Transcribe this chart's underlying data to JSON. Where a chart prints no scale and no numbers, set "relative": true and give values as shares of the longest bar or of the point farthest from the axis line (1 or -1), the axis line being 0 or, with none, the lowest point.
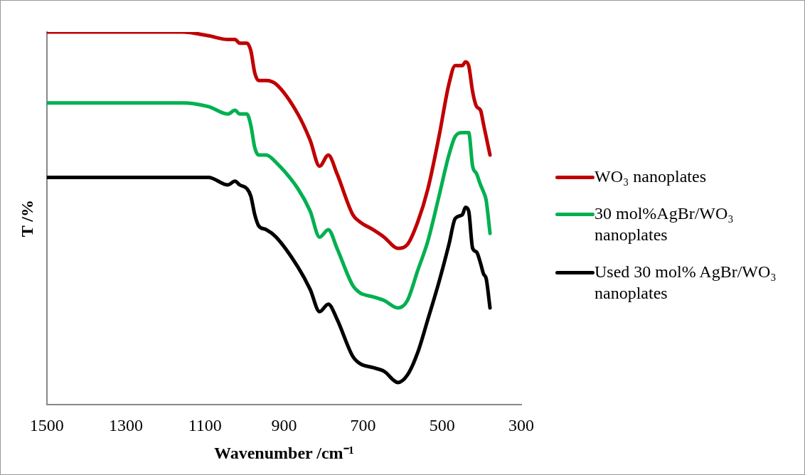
{
  "chart_data": {
    "type": "line",
    "relative": true,
    "xlabel": "Wavenumber /cm⁻¹",
    "ylabel": "T /%",
    "x": [
      1500,
      1355,
      1157,
      1091,
      1042,
      1024,
      1012,
      994,
      984,
      974,
      964,
      945,
      920,
      865,
      834,
      810,
      788,
      766,
      726,
      707,
      675,
      647,
      612,
      588,
      562,
      536,
      508,
      483,
      467,
      449,
      441,
      433,
      423,
      413,
      403,
      395,
      389,
      379
    ],
    "xlim": [
      1500,
      300
    ],
    "xticks": [
      1500,
      1300,
      1100,
      900,
      700,
      500,
      300
    ],
    "grid": false,
    "legend": "right",
    "marker": "none",
    "line_style": "solid",
    "series": [
      {
        "name": "WO₃ nanoplates",
        "color": "#c00000",
        "values": [
          1.0,
          1.0,
          1.0,
          0.99,
          0.98,
          0.98,
          0.97,
          0.97,
          0.95,
          0.89,
          0.87,
          0.87,
          0.86,
          0.78,
          0.71,
          0.64,
          0.67,
          0.62,
          0.51,
          0.49,
          0.47,
          0.45,
          0.42,
          0.43,
          0.49,
          0.58,
          0.72,
          0.86,
          0.91,
          0.91,
          0.92,
          0.91,
          0.84,
          0.8,
          0.79,
          0.75,
          0.72,
          0.67
        ]
      },
      {
        "name": "30 mol%AgBr/WO₃ nanoplates",
        "color": "#00b050",
        "values": [
          0.81,
          0.81,
          0.81,
          0.8,
          0.78,
          0.79,
          0.78,
          0.78,
          0.75,
          0.69,
          0.67,
          0.67,
          0.65,
          0.58,
          0.52,
          0.45,
          0.47,
          0.42,
          0.32,
          0.3,
          0.29,
          0.28,
          0.26,
          0.28,
          0.36,
          0.44,
          0.56,
          0.67,
          0.72,
          0.73,
          0.73,
          0.73,
          0.64,
          0.62,
          0.59,
          0.57,
          0.55,
          0.46
        ]
      },
      {
        "name": "Used 30 mol% AgBr/WO₃ nanoplates",
        "color": "#000000",
        "values": [
          0.61,
          0.61,
          0.61,
          0.61,
          0.59,
          0.6,
          0.59,
          0.58,
          0.56,
          0.51,
          0.48,
          0.47,
          0.45,
          0.37,
          0.31,
          0.25,
          0.27,
          0.23,
          0.13,
          0.11,
          0.1,
          0.09,
          0.06,
          0.08,
          0.14,
          0.23,
          0.33,
          0.43,
          0.5,
          0.51,
          0.53,
          0.52,
          0.42,
          0.41,
          0.38,
          0.35,
          0.34,
          0.26
        ]
      }
    ]
  }
}
